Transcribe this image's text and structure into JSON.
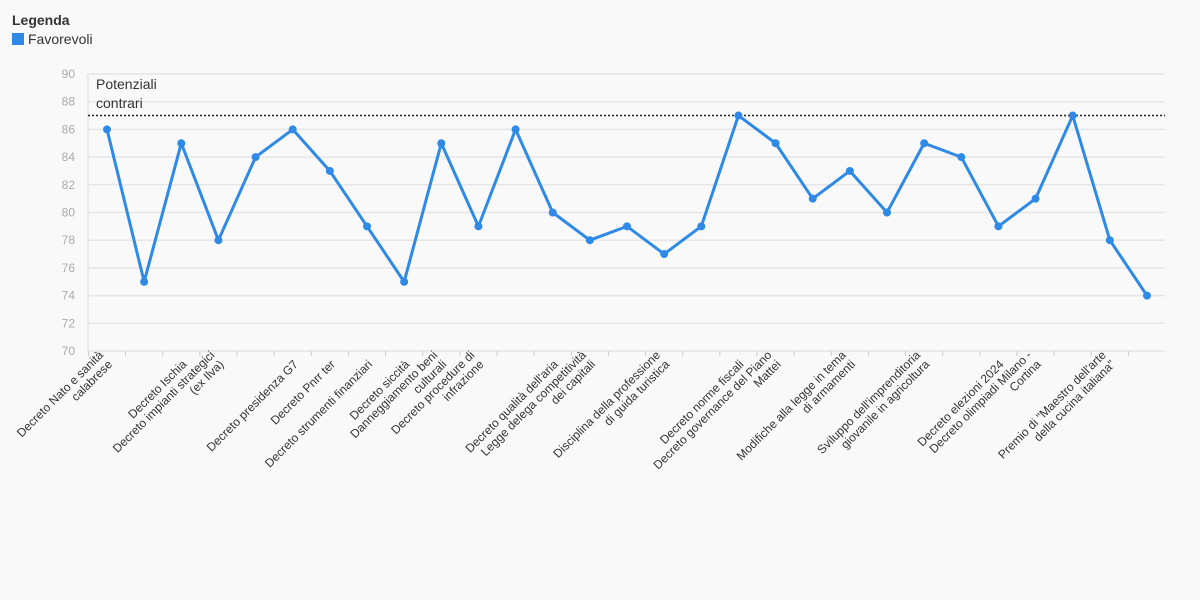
{
  "legend": {
    "title": "Legenda",
    "items": [
      {
        "label": "Favorevoli",
        "color": "#2e8ae6"
      }
    ]
  },
  "chart_data": {
    "type": "line",
    "title": "",
    "xlabel": "",
    "ylabel": "",
    "ylim": [
      70,
      90
    ],
    "yticks": [
      70,
      72,
      74,
      76,
      78,
      80,
      82,
      84,
      86,
      88,
      90
    ],
    "grid": true,
    "legend_position": "top-left",
    "categories": [
      "Decreto Nato e sanità calabrese",
      "",
      "Decreto Ischia",
      "Decreto impianti strategici (ex Ilva)",
      "",
      "Decreto presidenza G7",
      "Decreto Pnrr ter",
      "Decreto strumenti finanziari",
      "Decreto siccità",
      "Danneggiamento beni culturali",
      "Decreto procedure di infrazione",
      "",
      "Decreto qualità dell'aria",
      "Legge delega competitività dei capitali",
      "",
      "Disciplina della professione di guida turistica",
      "",
      "Decreto norme fiscali",
      "Decreto governance del Piano Mattei",
      "",
      "Modifiche alla legge in tema di armamenti",
      "",
      "Sviluppo dell'imprenditoria giovanile in agricoltura",
      "",
      "Decreto elezioni 2024",
      "Decreto olimpiadi Milano - Cortina",
      "",
      "Premio di \"Maestro dell'arte della cucina italiana\"",
      ""
    ],
    "series": [
      {
        "name": "Favorevoli",
        "color": "#2e8ae6",
        "values": [
          86,
          75,
          85,
          78,
          84,
          86,
          83,
          79,
          75,
          85,
          79,
          86,
          80,
          78,
          79,
          77,
          79,
          87,
          85,
          81,
          83,
          80,
          85,
          84,
          79,
          81,
          87,
          78,
          74
        ]
      }
    ],
    "reference_line": {
      "value": 87,
      "label_lines": [
        "Potenziali",
        "contrari"
      ],
      "style": "dotted",
      "color": "#222222"
    }
  }
}
